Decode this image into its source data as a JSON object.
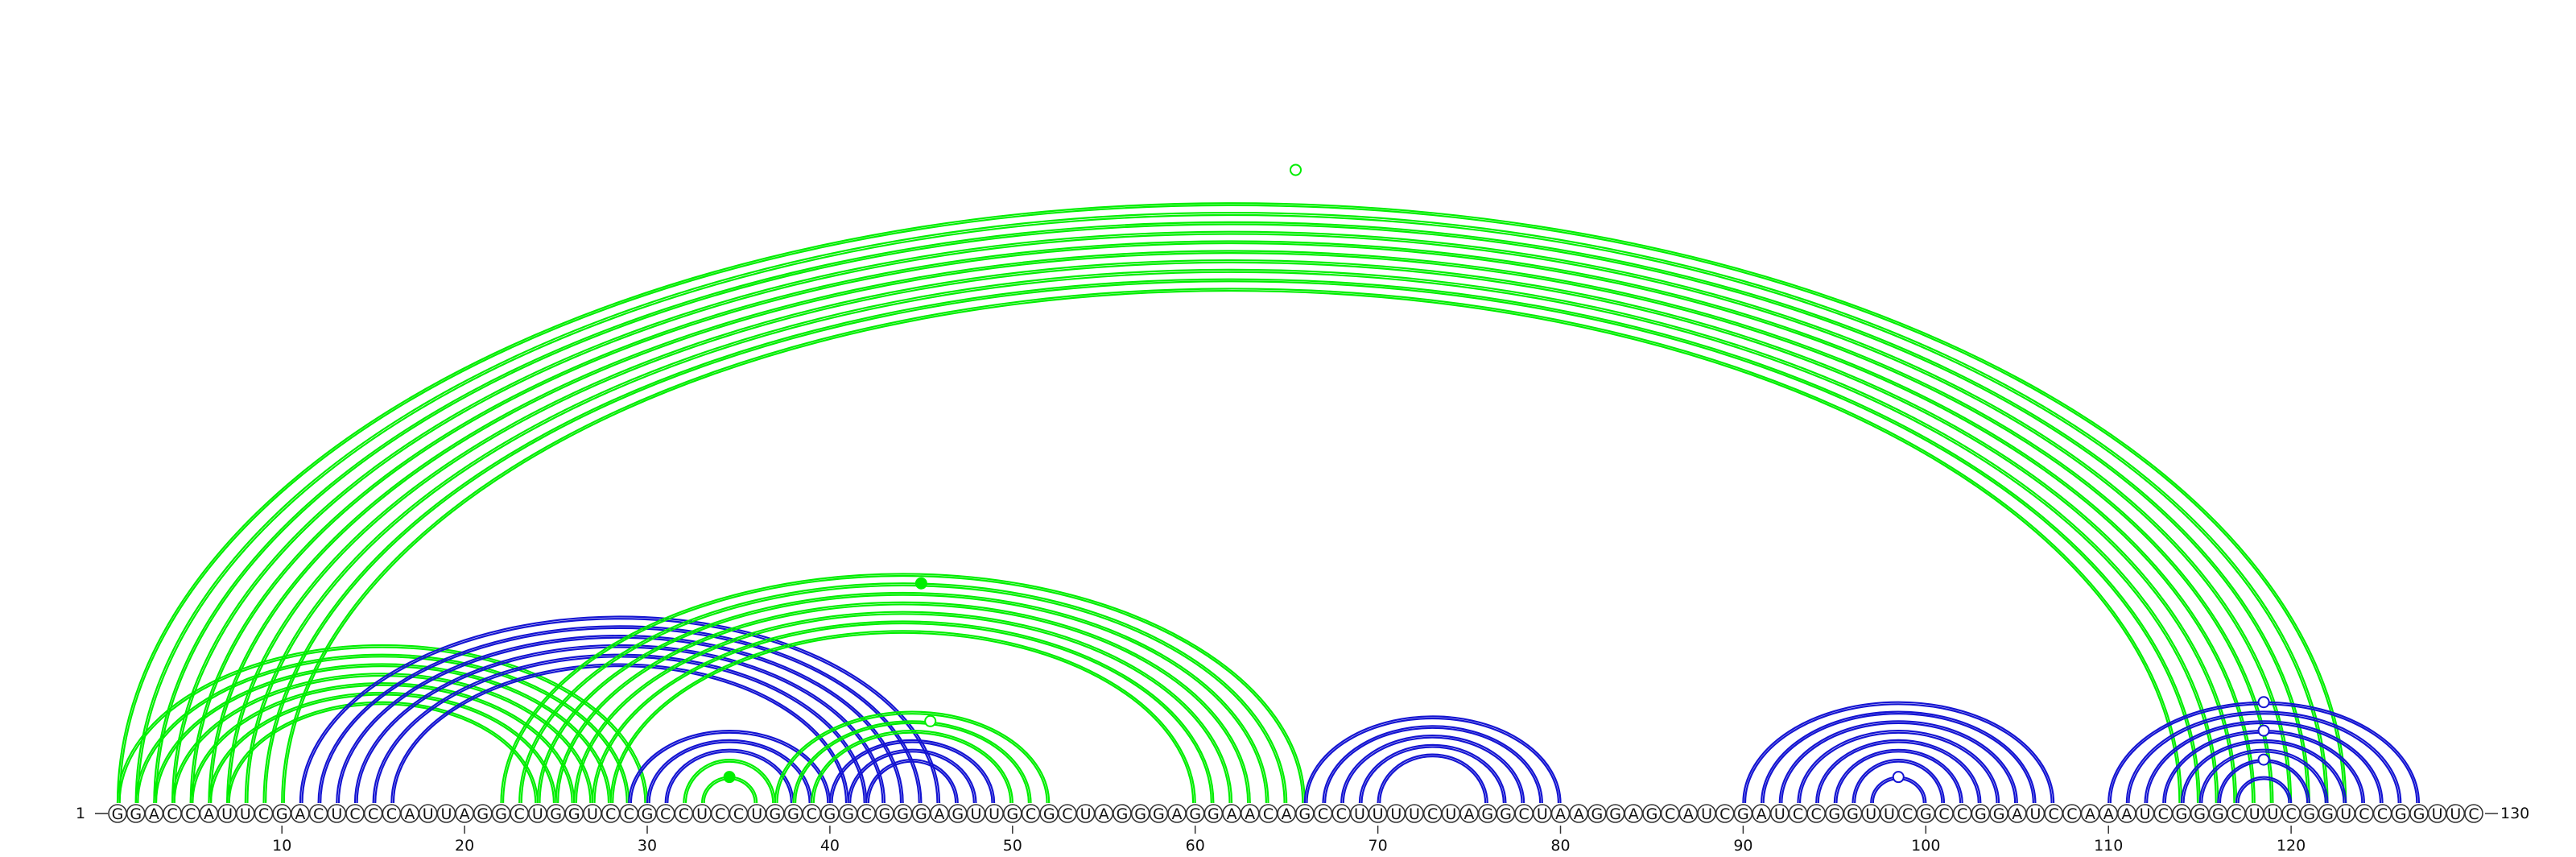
{
  "diagram": {
    "sequence": "GGACCAUUCGACUCCCAUUAGGCUGGUCCGCCUCCUGGCGGCGGGAGUUGCGCUAGGGAGGAACAGCCUUUUCUAGGCUAAGGAGCAUCGAUCCGGUUCGCCGGAUCCAAAUCGGGCUUCGGUCCGGUUC",
    "start_label": "1",
    "end_label": "130",
    "ticks": [
      10,
      20,
      30,
      40,
      50,
      60,
      70,
      80,
      90,
      100,
      110,
      120
    ],
    "colors": {
      "green": "#00ee00",
      "blue": "#1414d2"
    },
    "arcs": [
      {
        "i": 1,
        "j": 123,
        "color": "green"
      },
      {
        "i": 2,
        "j": 122,
        "color": "green"
      },
      {
        "i": 3,
        "j": 121,
        "color": "green"
      },
      {
        "i": 4,
        "j": 120,
        "color": "green"
      },
      {
        "i": 5,
        "j": 119,
        "color": "green"
      },
      {
        "i": 6,
        "j": 118,
        "color": "green"
      },
      {
        "i": 7,
        "j": 117,
        "color": "green"
      },
      {
        "i": 8,
        "j": 116,
        "color": "green"
      },
      {
        "i": 9,
        "j": 115,
        "color": "green"
      },
      {
        "i": 10,
        "j": 114,
        "color": "green"
      },
      {
        "i": 1,
        "j": 30,
        "color": "green"
      },
      {
        "i": 2,
        "j": 29,
        "color": "green"
      },
      {
        "i": 3,
        "j": 28,
        "color": "green"
      },
      {
        "i": 4,
        "j": 27,
        "color": "green"
      },
      {
        "i": 5,
        "j": 26,
        "color": "green"
      },
      {
        "i": 6,
        "j": 25,
        "color": "green"
      },
      {
        "i": 7,
        "j": 24,
        "color": "green"
      },
      {
        "i": 11,
        "j": 46,
        "color": "blue"
      },
      {
        "i": 12,
        "j": 45,
        "color": "blue"
      },
      {
        "i": 13,
        "j": 44,
        "color": "blue"
      },
      {
        "i": 14,
        "j": 43,
        "color": "blue"
      },
      {
        "i": 15,
        "j": 42,
        "color": "blue"
      },
      {
        "i": 16,
        "j": 41,
        "color": "blue"
      },
      {
        "i": 22,
        "j": 66,
        "color": "green"
      },
      {
        "i": 23,
        "j": 65,
        "color": "green"
      },
      {
        "i": 24,
        "j": 64,
        "color": "green"
      },
      {
        "i": 25,
        "j": 63,
        "color": "green"
      },
      {
        "i": 26,
        "j": 62,
        "color": "green"
      },
      {
        "i": 27,
        "j": 61,
        "color": "green"
      },
      {
        "i": 28,
        "j": 60,
        "color": "green"
      },
      {
        "i": 29,
        "j": 40,
        "color": "blue"
      },
      {
        "i": 30,
        "j": 39,
        "color": "blue"
      },
      {
        "i": 31,
        "j": 38,
        "color": "blue"
      },
      {
        "i": 32,
        "j": 37,
        "color": "green"
      },
      {
        "i": 33,
        "j": 36,
        "color": "green"
      },
      {
        "i": 37,
        "j": 52,
        "color": "green"
      },
      {
        "i": 38,
        "j": 51,
        "color": "green"
      },
      {
        "i": 39,
        "j": 50,
        "color": "green"
      },
      {
        "i": 40,
        "j": 49,
        "color": "blue"
      },
      {
        "i": 41,
        "j": 48,
        "color": "blue"
      },
      {
        "i": 42,
        "j": 47,
        "color": "blue"
      },
      {
        "i": 66,
        "j": 80,
        "color": "blue"
      },
      {
        "i": 67,
        "j": 79,
        "color": "blue"
      },
      {
        "i": 68,
        "j": 78,
        "color": "blue"
      },
      {
        "i": 69,
        "j": 77,
        "color": "blue"
      },
      {
        "i": 70,
        "j": 76,
        "color": "blue"
      },
      {
        "i": 90,
        "j": 107,
        "color": "blue"
      },
      {
        "i": 91,
        "j": 106,
        "color": "blue"
      },
      {
        "i": 92,
        "j": 105,
        "color": "blue"
      },
      {
        "i": 93,
        "j": 104,
        "color": "blue"
      },
      {
        "i": 94,
        "j": 103,
        "color": "blue"
      },
      {
        "i": 95,
        "j": 102,
        "color": "blue"
      },
      {
        "i": 96,
        "j": 101,
        "color": "blue"
      },
      {
        "i": 97,
        "j": 100,
        "color": "blue"
      },
      {
        "i": 110,
        "j": 127,
        "color": "blue"
      },
      {
        "i": 111,
        "j": 126,
        "color": "blue"
      },
      {
        "i": 112,
        "j": 125,
        "color": "blue"
      },
      {
        "i": 113,
        "j": 124,
        "color": "blue"
      },
      {
        "i": 114,
        "j": 123,
        "color": "blue"
      },
      {
        "i": 115,
        "j": 122,
        "color": "blue"
      },
      {
        "i": 116,
        "j": 121,
        "color": "blue"
      },
      {
        "i": 117,
        "j": 120,
        "color": "blue"
      }
    ],
    "markers": [
      {
        "i": 1,
        "j": 130,
        "color": "green",
        "filled": false
      },
      {
        "i": 24,
        "j": 66,
        "color": "green",
        "filled": true
      },
      {
        "i": 39,
        "j": 52,
        "color": "green",
        "filled": false
      },
      {
        "i": 33,
        "j": 36,
        "color": "green",
        "filled": true
      },
      {
        "i": 97,
        "j": 100,
        "color": "blue",
        "filled": false
      },
      {
        "i": 110,
        "j": 127,
        "color": "blue",
        "filled": false
      },
      {
        "i": 113,
        "j": 124,
        "color": "blue",
        "filled": false
      },
      {
        "i": 116,
        "j": 121,
        "color": "blue",
        "filled": false
      }
    ]
  }
}
